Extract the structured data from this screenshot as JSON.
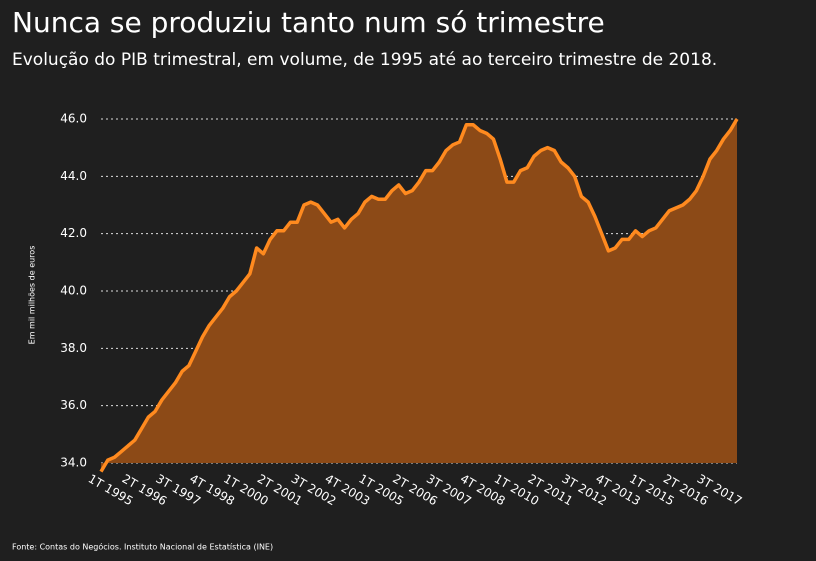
{
  "chart_data": {
    "type": "area",
    "title": "Nunca se produziu tanto num só trimestre",
    "subtitle": "Evolução do PIB trimestral, em volume, de 1995 até ao terceiro trimestre de 2018.",
    "y_label": "Em mil milhões de euros",
    "source": "Fonte: Contas do Negócios. Instituto Nacional de Estatística (INE)",
    "categories": [
      "1T 1995",
      null,
      null,
      null,
      null,
      "2T 1996",
      null,
      null,
      null,
      null,
      "3T 1997",
      null,
      null,
      null,
      null,
      "4T 1998",
      null,
      null,
      null,
      null,
      "1T 2000",
      null,
      null,
      null,
      null,
      "2T 2001",
      null,
      null,
      null,
      null,
      "3T 2002",
      null,
      null,
      null,
      null,
      "4T 2003",
      null,
      null,
      null,
      null,
      "1T 2005",
      null,
      null,
      null,
      null,
      "2T 2006",
      null,
      null,
      null,
      null,
      "3T 2007",
      null,
      null,
      null,
      null,
      "4T 2008",
      null,
      null,
      null,
      null,
      "1T 2010",
      null,
      null,
      null,
      null,
      "2T 2011",
      null,
      null,
      null,
      null,
      "3T 2012",
      null,
      null,
      null,
      null,
      "4T 2013",
      null,
      null,
      null,
      null,
      "1T 2015",
      null,
      null,
      null,
      null,
      "2T 2016",
      null,
      null,
      null,
      null,
      "3T 2017",
      null,
      null,
      null,
      null
    ],
    "values": [
      33.7,
      34.1,
      34.2,
      34.4,
      34.6,
      34.8,
      35.2,
      35.6,
      35.8,
      36.2,
      36.5,
      36.8,
      37.2,
      37.4,
      37.9,
      38.4,
      38.8,
      39.1,
      39.4,
      39.8,
      40.0,
      40.3,
      40.6,
      41.5,
      41.3,
      41.8,
      42.1,
      42.1,
      42.4,
      42.4,
      43.0,
      43.1,
      43.0,
      42.7,
      42.4,
      42.5,
      42.2,
      42.5,
      42.7,
      43.1,
      43.3,
      43.2,
      43.2,
      43.5,
      43.7,
      43.4,
      43.5,
      43.8,
      44.2,
      44.2,
      44.5,
      44.9,
      45.1,
      45.2,
      45.8,
      45.8,
      45.6,
      45.5,
      45.3,
      44.6,
      43.8,
      43.8,
      44.2,
      44.3,
      44.7,
      44.9,
      45.0,
      44.9,
      44.5,
      44.3,
      44.0,
      43.3,
      43.1,
      42.6,
      42.0,
      41.4,
      41.5,
      41.8,
      41.8,
      42.1,
      41.9,
      42.1,
      42.2,
      42.5,
      42.8,
      42.9,
      43.0,
      43.2,
      43.5,
      44.0,
      44.6,
      44.9,
      45.3,
      45.6,
      46.0
    ],
    "color": "#ff8a1f",
    "area_color": "#8c4a17",
    "ylim": [
      34,
      46
    ],
    "yticks": [
      {
        "value": 34,
        "label": "34.0"
      },
      {
        "value": 36,
        "label": "36.0"
      },
      {
        "value": 38,
        "label": "38.0"
      },
      {
        "value": 40,
        "label": "40.0"
      },
      {
        "value": 42,
        "label": "42.0"
      },
      {
        "value": 44,
        "label": "44.0"
      },
      {
        "value": 46,
        "label": "46.0"
      }
    ],
    "grid": true
  }
}
